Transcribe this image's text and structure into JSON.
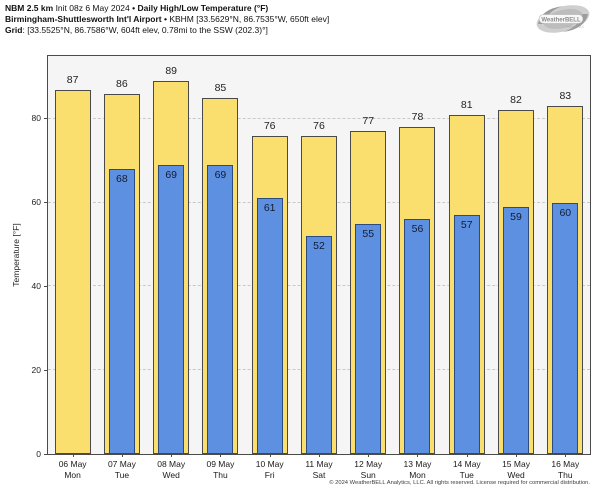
{
  "header": {
    "bullet": "•",
    "line1": {
      "model": "NBM 2.5 km",
      "init": "Init 08z 6 May 2024",
      "title": "Daily High/Low Temperature (°F)"
    },
    "line2": {
      "station": "Birmingham-Shuttlesworth Int'l Airport",
      "details": "KBHM [33.5629°N, 86.7535°W, 650ft elev]"
    },
    "line3": {
      "label": "Grid",
      "details": ": [33.5525°N, 86.7586°W, 604ft elev, 0.78mi to the SSW (202.3)°]"
    }
  },
  "logo": {
    "brand": "WeatherBELL",
    "sub": "Analytics LLC"
  },
  "chart_data": {
    "type": "bar",
    "title": "Daily High/Low Temperature (°F)",
    "xlabel": "",
    "ylabel": "Temperature [°F]",
    "ylim": [
      0,
      95
    ],
    "yticks": [
      0,
      20,
      40,
      60,
      80
    ],
    "grid": "horizontal dashed at yticks",
    "legend_position": "none",
    "categories": [
      {
        "date": "06 May",
        "day": "Mon"
      },
      {
        "date": "07 May",
        "day": "Tue"
      },
      {
        "date": "08 May",
        "day": "Wed"
      },
      {
        "date": "09 May",
        "day": "Thu"
      },
      {
        "date": "10 May",
        "day": "Fri"
      },
      {
        "date": "11 May",
        "day": "Sat"
      },
      {
        "date": "12 May",
        "day": "Sun"
      },
      {
        "date": "13 May",
        "day": "Mon"
      },
      {
        "date": "14 May",
        "day": "Tue"
      },
      {
        "date": "15 May",
        "day": "Wed"
      },
      {
        "date": "16 May",
        "day": "Thu"
      }
    ],
    "series": [
      {
        "name": "High",
        "color": "#fbdf6e",
        "border_color": "#4a4a4a",
        "values": [
          87,
          86,
          89,
          85,
          76,
          76,
          77,
          78,
          81,
          82,
          83
        ]
      },
      {
        "name": "Low",
        "color": "#5e90e2",
        "border_color": "#2e4b7e",
        "values": [
          null,
          68,
          69,
          69,
          61,
          52,
          55,
          56,
          57,
          59,
          60
        ]
      }
    ],
    "plot_background": "#f5f5f5",
    "gridline_color": "#c9c9c9"
  },
  "footer": "© 2024 WeatherBELL Analytics, LLC. All rights reserved. License required for commercial distribution."
}
